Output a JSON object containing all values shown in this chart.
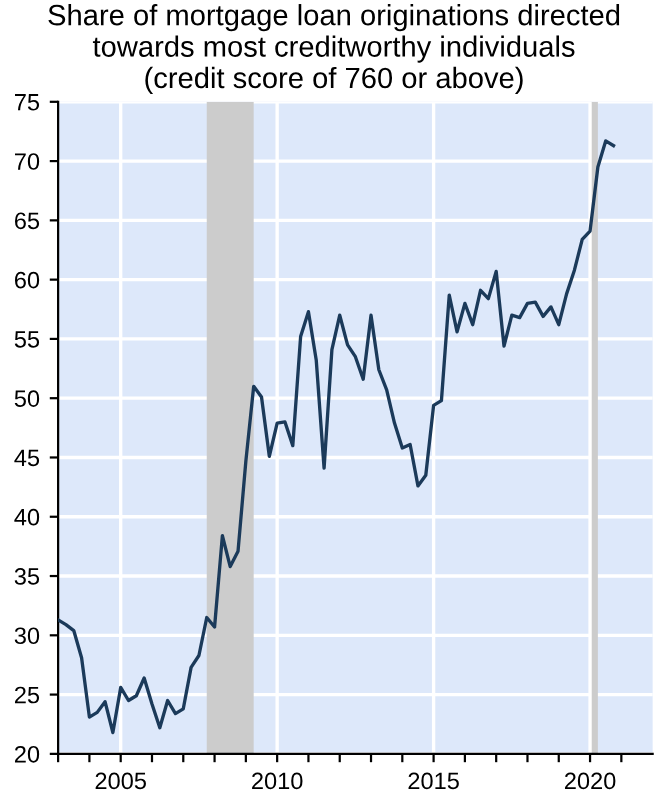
{
  "chart_data": {
    "type": "line",
    "title": "Share of mortgage loan originations directed\ntowards most creditworthy individuals\n(credit score of 760 or above)",
    "x": [
      2003.0,
      2003.25,
      2003.5,
      2003.75,
      2004.0,
      2004.25,
      2004.5,
      2004.75,
      2005.0,
      2005.25,
      2005.5,
      2005.75,
      2006.0,
      2006.25,
      2006.5,
      2006.75,
      2007.0,
      2007.25,
      2007.5,
      2007.75,
      2008.0,
      2008.25,
      2008.5,
      2008.75,
      2009.0,
      2009.25,
      2009.5,
      2009.75,
      2010.0,
      2010.25,
      2010.5,
      2010.75,
      2011.0,
      2011.25,
      2011.5,
      2011.75,
      2012.0,
      2012.25,
      2012.5,
      2012.75,
      2013.0,
      2013.25,
      2013.5,
      2013.75,
      2014.0,
      2014.25,
      2014.5,
      2014.75,
      2015.0,
      2015.25,
      2015.5,
      2015.75,
      2016.0,
      2016.25,
      2016.5,
      2016.75,
      2017.0,
      2017.25,
      2017.5,
      2017.75,
      2018.0,
      2018.25,
      2018.5,
      2018.75,
      2019.0,
      2019.25,
      2019.5,
      2019.75,
      2020.0,
      2020.25,
      2020.5,
      2020.75
    ],
    "series": [
      {
        "color": "#1b3a5a",
        "values": [
          31.3,
          30.9,
          30.4,
          28.1,
          23.1,
          23.5,
          24.4,
          21.8,
          25.6,
          24.5,
          24.9,
          26.4,
          24.2,
          22.2,
          24.5,
          23.4,
          23.8,
          27.3,
          28.3,
          31.5,
          30.7,
          38.4,
          35.8,
          37.1,
          44.7,
          51.0,
          50.1,
          45.1,
          47.9,
          48.0,
          46.0,
          55.2,
          57.3,
          53.2,
          44.1,
          54.1,
          57.0,
          54.5,
          53.5,
          51.6,
          57.0,
          52.4,
          50.7,
          47.9,
          45.8,
          46.1,
          42.6,
          43.5,
          49.4,
          49.8,
          58.7,
          55.6,
          58.0,
          56.2,
          59.1,
          58.4,
          60.7,
          54.4,
          57.0,
          56.8,
          58.0,
          58.1,
          56.9,
          57.7,
          56.2,
          58.8,
          60.8,
          63.4,
          64.1,
          69.5,
          71.7,
          71.3
        ]
      }
    ],
    "xlim": [
      2003,
      2022
    ],
    "xticks": [
      {
        "value": 2003,
        "label": null
      },
      {
        "value": 2004,
        "label": null
      },
      2005,
      {
        "value": 2006,
        "label": null
      },
      {
        "value": 2007,
        "label": null
      },
      {
        "value": 2008,
        "label": null
      },
      {
        "value": 2009,
        "label": null
      },
      2010,
      {
        "value": 2011,
        "label": null
      },
      {
        "value": 2012,
        "label": null
      },
      {
        "value": 2013,
        "label": null
      },
      {
        "value": 2014,
        "label": null
      },
      2015,
      {
        "value": 2016,
        "label": null
      },
      {
        "value": 2017,
        "label": null
      },
      {
        "value": 2018,
        "label": null
      },
      {
        "value": 2019,
        "label": null
      },
      2020,
      {
        "value": 2021,
        "label": null
      }
    ],
    "ylim": [
      20,
      75
    ],
    "yticks": [
      20,
      25,
      30,
      35,
      40,
      45,
      50,
      55,
      60,
      65,
      70,
      75
    ],
    "bands": [
      {
        "axis": "x",
        "from": 2007.75,
        "to": 2009.25,
        "color": "#cccccc"
      },
      {
        "axis": "x",
        "from": 2020.0,
        "to": 2020.25,
        "color": "#cccccc"
      }
    ],
    "grid": true,
    "line_style": "solid",
    "marker": "none"
  }
}
